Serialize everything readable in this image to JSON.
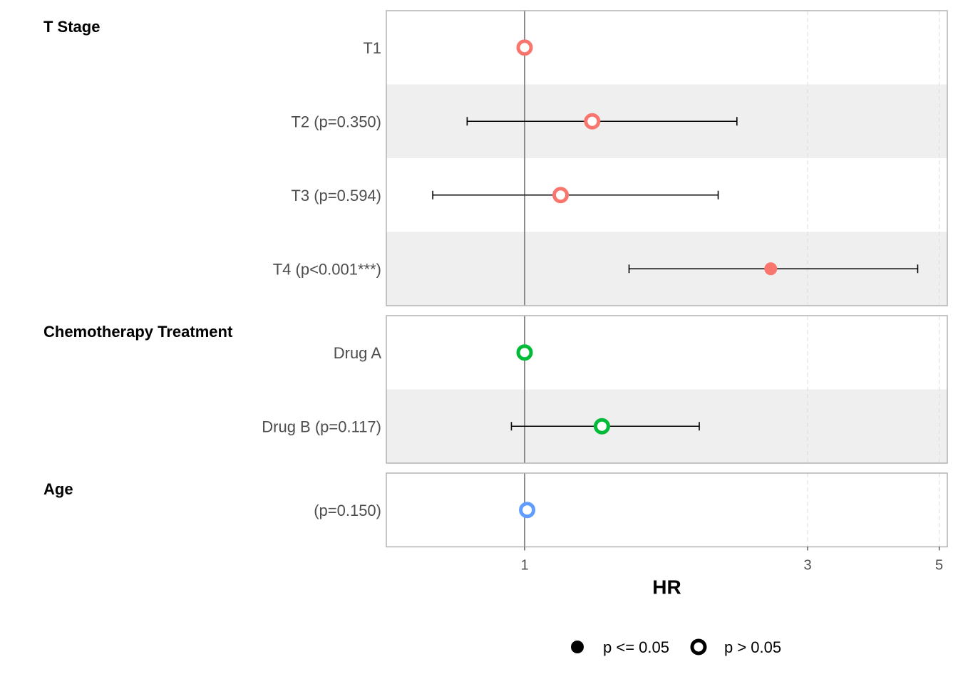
{
  "chart_data": {
    "type": "forest",
    "xlabel": "HR",
    "xscale": "log",
    "xlim": [
      0.6,
      5.1
    ],
    "xticks": [
      1,
      3,
      5
    ],
    "reference_line": 1,
    "vertical_gridlines": [
      3,
      5
    ],
    "groups": [
      {
        "title": "T Stage",
        "color": "#F8766D",
        "rows": [
          {
            "label": "T1",
            "hr": 1.0,
            "lower": null,
            "upper": null,
            "significant": false
          },
          {
            "label": "T2 (p=0.350)",
            "hr": 1.3,
            "lower": 0.8,
            "upper": 2.28,
            "significant": false
          },
          {
            "label": "T3 (p=0.594)",
            "hr": 1.15,
            "lower": 0.7,
            "upper": 2.12,
            "significant": false
          },
          {
            "label": "T4 (p<0.001***)",
            "hr": 2.6,
            "lower": 1.5,
            "upper": 4.6,
            "significant": true
          }
        ]
      },
      {
        "title": "Chemotherapy Treatment",
        "color": "#00BA38",
        "rows": [
          {
            "label": "Drug A",
            "hr": 1.0,
            "lower": null,
            "upper": null,
            "significant": false
          },
          {
            "label": "Drug B (p=0.117)",
            "hr": 1.35,
            "lower": 0.95,
            "upper": 1.97,
            "significant": false
          }
        ]
      },
      {
        "title": "Age",
        "color": "#619CFF",
        "rows": [
          {
            "label": "(p=0.150)",
            "hr": 1.01,
            "lower": null,
            "upper": null,
            "significant": false
          }
        ]
      }
    ],
    "legend": {
      "position": "bottom",
      "items": [
        {
          "label": "p <= 0.05",
          "marker": "filled"
        },
        {
          "label": "p > 0.05",
          "marker": "hollow"
        }
      ]
    }
  }
}
